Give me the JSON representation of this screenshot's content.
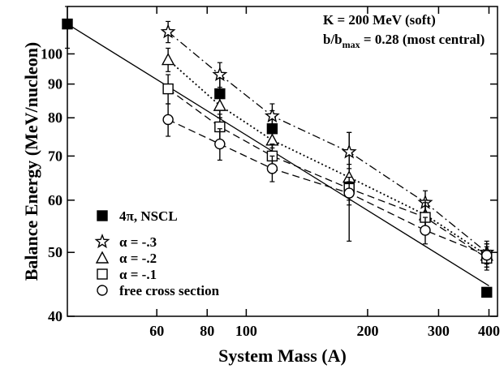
{
  "chart_data": {
    "type": "scatter",
    "xlabel": "System Mass (A)",
    "ylabel": "Balance Energy (MeV/nucleon)",
    "x_scale": "log",
    "y_scale": "log",
    "xlim": [
      36,
      420
    ],
    "ylim": [
      40,
      118
    ],
    "x_ticks": [
      {
        "value": 60,
        "label": "60"
      },
      {
        "value": 80,
        "label": "80"
      },
      {
        "value": 100,
        "label": "100"
      },
      {
        "value": 200,
        "label": "200"
      },
      {
        "value": 300,
        "label": "300"
      },
      {
        "value": 400,
        "label": "400"
      }
    ],
    "y_ticks": [
      {
        "value": 40,
        "label": "40"
      },
      {
        "value": 50,
        "label": "50"
      },
      {
        "value": 60,
        "label": "60"
      },
      {
        "value": 70,
        "label": "70"
      },
      {
        "value": 80,
        "label": "80"
      },
      {
        "value": 90,
        "label": "90"
      },
      {
        "value": 100,
        "label": "100"
      }
    ],
    "annotation": {
      "line1": "K = 200 MeV  (soft)",
      "line2_prefix": "b/b",
      "line2_sub": "max",
      "line2_suffix": " = 0.28 (most central)"
    },
    "legend_position": "bottom-left",
    "series": [
      {
        "name": "4π, NSCL",
        "marker": "filled-square",
        "line": "solid",
        "fit": {
          "x": [
            36,
            400
          ],
          "y": [
            111,
            44.5
          ]
        },
        "points": [
          {
            "x": 36,
            "y": 111,
            "err": [
              102,
              118
            ]
          },
          {
            "x": 86,
            "y": 87,
            "err": [
              80,
              93
            ]
          },
          {
            "x": 116,
            "y": 77,
            "err": [
              72,
              82
            ]
          },
          {
            "x": 180,
            "y": 63,
            "err": [
              52,
              76
            ]
          },
          {
            "x": 395,
            "y": 43.5,
            "err": [
              43.5,
              43.5
            ]
          }
        ]
      },
      {
        "name": "α = -.3",
        "marker": "open-star",
        "line": "dashdot",
        "points": [
          {
            "x": 64,
            "y": 108,
            "err": [
              104,
              112
            ]
          },
          {
            "x": 86,
            "y": 93,
            "err": [
              89,
              97
            ]
          },
          {
            "x": 116,
            "y": 80.5,
            "err": [
              77,
              84
            ]
          },
          {
            "x": 180,
            "y": 71,
            "err": [
              67,
              76
            ]
          },
          {
            "x": 278,
            "y": 59.5,
            "err": [
              57,
              62
            ]
          },
          {
            "x": 395,
            "y": 50,
            "err": [
              48,
              52
            ]
          }
        ]
      },
      {
        "name": "α = -.2",
        "marker": "open-triangle",
        "line": "dotted",
        "points": [
          {
            "x": 64,
            "y": 98,
            "err": [
              94,
              102
            ]
          },
          {
            "x": 86,
            "y": 83.5,
            "err": [
              80,
              87
            ]
          },
          {
            "x": 116,
            "y": 74,
            "err": [
              71,
              77
            ]
          },
          {
            "x": 180,
            "y": 65,
            "err": [
              62,
              68
            ]
          },
          {
            "x": 278,
            "y": 57,
            "err": [
              54,
              60
            ]
          },
          {
            "x": 395,
            "y": 49.5,
            "err": [
              47.5,
              51.5
            ]
          }
        ]
      },
      {
        "name": "α = -.1",
        "marker": "open-square",
        "line": "dashed",
        "points": [
          {
            "x": 64,
            "y": 88.5,
            "err": [
              84,
              93
            ]
          },
          {
            "x": 86,
            "y": 77.5,
            "err": [
              74,
              81
            ]
          },
          {
            "x": 116,
            "y": 70,
            "err": [
              67,
              73
            ]
          },
          {
            "x": 180,
            "y": 62.5,
            "err": [
              60,
              65
            ]
          },
          {
            "x": 278,
            "y": 56.5,
            "err": [
              53.5,
              59.5
            ]
          },
          {
            "x": 395,
            "y": 49,
            "err": [
              47,
              51
            ]
          }
        ]
      },
      {
        "name": "free cross section",
        "marker": "open-circle",
        "line": "dashed",
        "points": [
          {
            "x": 64,
            "y": 79.5,
            "err": [
              75,
              84
            ]
          },
          {
            "x": 86,
            "y": 73,
            "err": [
              69,
              77
            ]
          },
          {
            "x": 116,
            "y": 67,
            "err": [
              64,
              70
            ]
          },
          {
            "x": 180,
            "y": 61.5,
            "err": [
              59,
              64
            ]
          },
          {
            "x": 278,
            "y": 54,
            "err": [
              51.5,
              56.5
            ]
          },
          {
            "x": 395,
            "y": 49.5,
            "err": [
              47.5,
              51.5
            ]
          }
        ]
      }
    ]
  }
}
